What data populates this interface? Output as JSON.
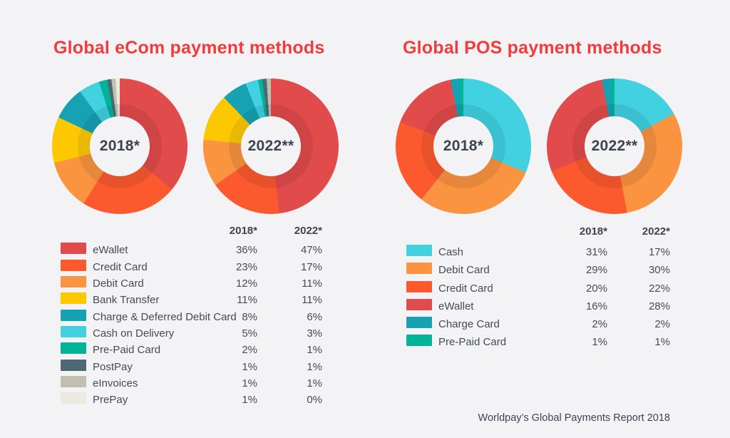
{
  "page": {
    "background": "#f3f3f5",
    "accent_red": "#f03c3c",
    "text_dark": "#454b55"
  },
  "footer": "Worldpay’s Global Payments Report 2018",
  "sections": [
    {
      "title": "Global eCom payment methods",
      "col_headers": [
        "2018*",
        "2022*"
      ],
      "rows": [
        {
          "label": "eWallet",
          "color": "#e14b4b",
          "values": [
            "36%",
            "47%"
          ]
        },
        {
          "label": "Credit Card",
          "color": "#fc5a2e",
          "values": [
            "23%",
            "17%"
          ]
        },
        {
          "label": "Debit Card",
          "color": "#fa9441",
          "values": [
            "12%",
            "11%"
          ]
        },
        {
          "label": "Bank Transfer",
          "color": "#fdc800",
          "values": [
            "11%",
            "11%"
          ]
        },
        {
          "label": "Charge & Deferred Debit Card",
          "color": "#16a2b3",
          "values": [
            "8%",
            "6%"
          ]
        },
        {
          "label": "Cash on Delivery",
          "color": "#41d1e1",
          "values": [
            "5%",
            "3%"
          ]
        },
        {
          "label": "Pre-Paid Card",
          "color": "#00b497",
          "values": [
            "2%",
            "1%"
          ]
        },
        {
          "label": "PostPay",
          "color": "#4d6973",
          "values": [
            "1%",
            "1%"
          ]
        },
        {
          "label": "eInvoices",
          "color": "#c0bfb1",
          "values": [
            "1%",
            "1%"
          ]
        },
        {
          "label": "PrePay",
          "color": "#ebeadf",
          "values": [
            "1%",
            "0%"
          ]
        }
      ]
    },
    {
      "title": "Global POS payment methods",
      "col_headers": [
        "2018*",
        "2022*"
      ],
      "rows": [
        {
          "label": "Cash",
          "color": "#41d1e1",
          "values": [
            "31%",
            "17%"
          ]
        },
        {
          "label": "Debit Card",
          "color": "#fa9441",
          "values": [
            "29%",
            "30%"
          ]
        },
        {
          "label": "Credit Card",
          "color": "#fc5a2e",
          "values": [
            "20%",
            "22%"
          ]
        },
        {
          "label": "eWallet",
          "color": "#e14b4b",
          "values": [
            "16%",
            "28%"
          ]
        },
        {
          "label": "Charge Card",
          "color": "#16a2b3",
          "values": [
            "2%",
            "2%"
          ]
        },
        {
          "label": "Pre-Paid Card",
          "color": "#00b497",
          "values": [
            "1%",
            "1%"
          ]
        }
      ]
    }
  ],
  "chart_data": [
    {
      "type": "pie",
      "title": "Global eCom payment methods",
      "center_label": "2018*",
      "labels": [
        "eWallet",
        "Credit Card",
        "Debit Card",
        "Bank Transfer",
        "Charge & Deferred Debit Card",
        "Cash on Delivery",
        "Pre-Paid Card",
        "PostPay",
        "eInvoices",
        "PrePay"
      ],
      "values": [
        36,
        23,
        12,
        11,
        8,
        5,
        2,
        1,
        1,
        1
      ],
      "colors": [
        "#e14b4b",
        "#fc5a2e",
        "#fa9441",
        "#fdc800",
        "#16a2b3",
        "#41d1e1",
        "#00b497",
        "#4d6973",
        "#c0bfb1",
        "#ebeadf"
      ],
      "legend_position": "below",
      "donut": true,
      "start_angle_deg": 0,
      "direction": "clockwise"
    },
    {
      "type": "pie",
      "title": "Global eCom payment methods",
      "center_label": "2022**",
      "labels": [
        "eWallet",
        "Credit Card",
        "Debit Card",
        "Bank Transfer",
        "Charge & Deferred Debit Card",
        "Cash on Delivery",
        "Pre-Paid Card",
        "PostPay",
        "eInvoices",
        "PrePay"
      ],
      "values": [
        47,
        17,
        11,
        11,
        6,
        3,
        1,
        1,
        1,
        0
      ],
      "colors": [
        "#e14b4b",
        "#fc5a2e",
        "#fa9441",
        "#fdc800",
        "#16a2b3",
        "#41d1e1",
        "#00b497",
        "#4d6973",
        "#c0bfb1",
        "#ebeadf"
      ],
      "legend_position": "below",
      "donut": true,
      "start_angle_deg": 0,
      "direction": "clockwise"
    },
    {
      "type": "pie",
      "title": "Global POS payment methods",
      "center_label": "2018*",
      "labels": [
        "Cash",
        "Debit Card",
        "Credit Card",
        "eWallet",
        "Charge Card",
        "Pre-Paid Card"
      ],
      "values": [
        31,
        29,
        20,
        16,
        2,
        1
      ],
      "colors": [
        "#41d1e1",
        "#fa9441",
        "#fc5a2e",
        "#e14b4b",
        "#16a2b3",
        "#00b497"
      ],
      "legend_position": "below",
      "donut": true,
      "start_angle_deg": 0,
      "direction": "clockwise"
    },
    {
      "type": "pie",
      "title": "Global POS payment methods",
      "center_label": "2022**",
      "labels": [
        "Cash",
        "Debit Card",
        "Credit Card",
        "eWallet",
        "Charge Card",
        "Pre-Paid Card"
      ],
      "values": [
        17,
        30,
        22,
        28,
        2,
        1
      ],
      "colors": [
        "#41d1e1",
        "#fa9441",
        "#fc5a2e",
        "#e14b4b",
        "#16a2b3",
        "#00b497"
      ],
      "legend_position": "below",
      "donut": true,
      "start_angle_deg": 0,
      "direction": "clockwise"
    }
  ]
}
